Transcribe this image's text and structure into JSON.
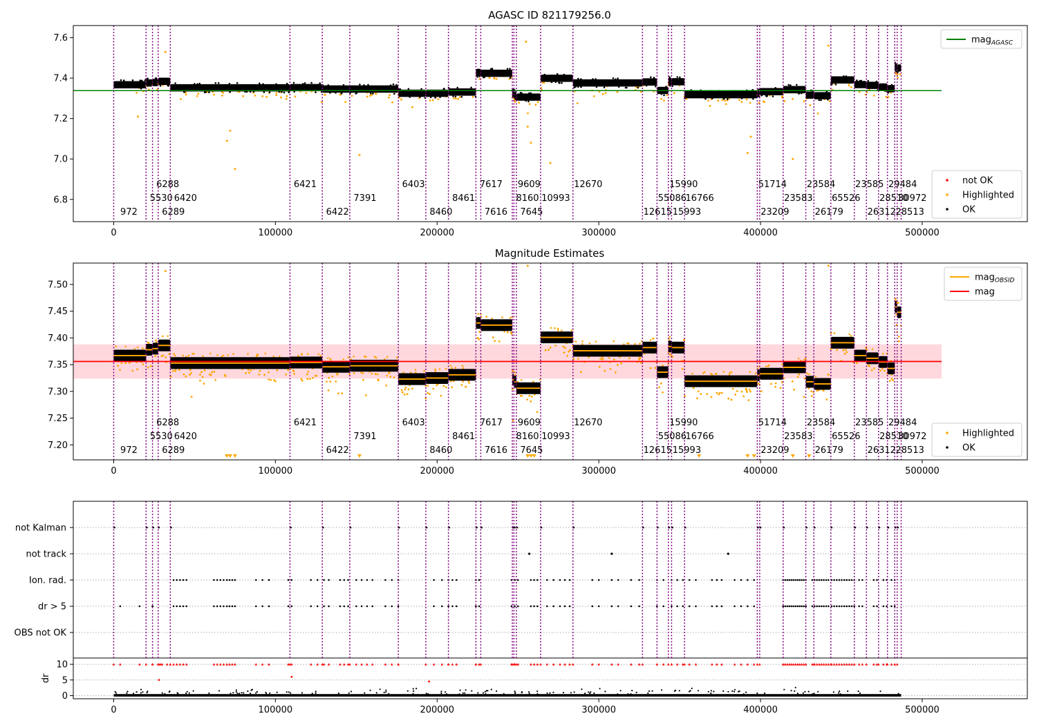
{
  "chart_data": [
    {
      "type": "scatter",
      "title": "AGASC ID 821179256.0",
      "xlim": [
        -25000,
        565000
      ],
      "ylim": [
        6.69,
        7.66
      ],
      "yticks": [
        6.8,
        7.0,
        7.2,
        7.4,
        7.6
      ],
      "ytick_labels": [
        "6.8",
        "7.0",
        "7.2",
        "7.4",
        "7.6"
      ],
      "xticks": [
        0,
        100000,
        200000,
        300000,
        400000,
        500000
      ],
      "xtick_labels": [
        "0",
        "100000",
        "200000",
        "300000",
        "400000",
        "500000"
      ],
      "mag_agasc": 7.338,
      "hline_color": "#008000",
      "legend": {
        "placement": "top-right",
        "entries": [
          {
            "label": "mag",
            "sub": "AGASC",
            "color": "#008000",
            "kind": "line"
          }
        ]
      },
      "legend2": {
        "placement": "lower-right",
        "entries": [
          {
            "label": "not OK",
            "color": "#ff0000",
            "kind": "dot"
          },
          {
            "label": "Highlighted",
            "color": "#ffa500",
            "kind": "dot"
          },
          {
            "label": "OK",
            "color": "#000000",
            "kind": "dot"
          }
        ]
      }
    },
    {
      "type": "scatter",
      "title": "Magnitude Estimates",
      "xlim": [
        -25000,
        565000
      ],
      "ylim": [
        7.172,
        7.54
      ],
      "yticks": [
        7.2,
        7.25,
        7.3,
        7.35,
        7.4,
        7.45,
        7.5
      ],
      "ytick_labels": [
        "7.20",
        "7.25",
        "7.30",
        "7.35",
        "7.40",
        "7.45",
        "7.50"
      ],
      "xticks": [
        0,
        100000,
        200000,
        300000,
        400000,
        500000
      ],
      "xtick_labels": [
        "0",
        "100000",
        "200000",
        "300000",
        "400000",
        "500000"
      ],
      "mag": 7.356,
      "mag_band": [
        7.324,
        7.388
      ],
      "legend": {
        "placement": "top-right",
        "entries": [
          {
            "label": "mag",
            "sub": "OBSID",
            "color": "#ffa500",
            "kind": "line"
          },
          {
            "label": "mag",
            "sub": "",
            "color": "#ff0000",
            "kind": "line"
          }
        ]
      },
      "legend2": {
        "placement": "lower-right",
        "entries": [
          {
            "label": "Highlighted",
            "color": "#ffa500",
            "kind": "dot"
          },
          {
            "label": "OK",
            "color": "#000000",
            "kind": "dot"
          }
        ]
      }
    },
    {
      "type": "scatter",
      "xlim": [
        -25000,
        565000
      ],
      "flag_labels": [
        "not Kalman",
        "not track",
        "Ion. rad.",
        "dr > 5",
        "OBS not OK"
      ],
      "dr_ylabel": "dr",
      "dr_ylim": [
        -1,
        12
      ],
      "dr_yticks": [
        0,
        5,
        10
      ],
      "dr_ytick_labels": [
        "0",
        "5",
        "10"
      ],
      "xticks": [
        0,
        100000,
        200000,
        300000,
        400000,
        500000
      ],
      "xtick_labels": [
        "0",
        "100000",
        "200000",
        "300000",
        "400000",
        "500000"
      ]
    }
  ],
  "segments": [
    {
      "start": 0,
      "end": 20000,
      "obsid": "972",
      "row": 0,
      "mag_obsid": 7.367,
      "mag_agasc_panel": 7.367
    },
    {
      "start": 20000,
      "end": 24000,
      "obsid": "5530",
      "row": 1,
      "mag_obsid": 7.378,
      "mag_agasc_panel": 7.376
    },
    {
      "start": 24000,
      "end": 27500,
      "obsid": "6288",
      "row": 2,
      "mag_obsid": 7.38,
      "mag_agasc_panel": 7.378
    },
    {
      "start": 27500,
      "end": 35000,
      "obsid": "6289",
      "row": 0,
      "mag_obsid": 7.386,
      "mag_agasc_panel": 7.384
    },
    {
      "start": 35000,
      "end": 109000,
      "obsid": "6420",
      "row": 1,
      "mag_obsid": 7.353,
      "mag_agasc_panel": 7.352
    },
    {
      "start": 109000,
      "end": 129000,
      "obsid": "6421",
      "row": 2,
      "mag_obsid": 7.354,
      "mag_agasc_panel": 7.353
    },
    {
      "start": 129000,
      "end": 146000,
      "obsid": "6422",
      "row": 0,
      "mag_obsid": 7.346,
      "mag_agasc_panel": 7.346
    },
    {
      "start": 146000,
      "end": 176000,
      "obsid": "7391",
      "row": 1,
      "mag_obsid": 7.348,
      "mag_agasc_panel": 7.346
    },
    {
      "start": 176000,
      "end": 193000,
      "obsid": "6403",
      "row": 2,
      "mag_obsid": 7.323,
      "mag_agasc_panel": 7.325
    },
    {
      "start": 193000,
      "end": 207000,
      "obsid": "8460",
      "row": 0,
      "mag_obsid": 7.325,
      "mag_agasc_panel": 7.325
    },
    {
      "start": 207000,
      "end": 224000,
      "obsid": "8461",
      "row": 1,
      "mag_obsid": 7.331,
      "mag_agasc_panel": 7.331
    },
    {
      "start": 224000,
      "end": 227000,
      "obsid": "7617",
      "row": 2,
      "mag_obsid": 7.428,
      "mag_agasc_panel": 7.428
    },
    {
      "start": 227000,
      "end": 246500,
      "obsid": "7616",
      "row": 0,
      "mag_obsid": 7.424,
      "mag_agasc_panel": 7.424
    },
    {
      "start": 246500,
      "end": 247500,
      "obsid": "8160",
      "row": 1,
      "mag_obsid": 7.322,
      "mag_agasc_panel": 7.322
    },
    {
      "start": 247500,
      "end": 249000,
      "obsid": "9609",
      "row": 2,
      "mag_obsid": 7.318,
      "mag_agasc_panel": 7.316
    },
    {
      "start": 249000,
      "end": 264000,
      "obsid": "7645",
      "row": 0,
      "mag_obsid": 7.306,
      "mag_agasc_panel": 7.306
    },
    {
      "start": 264000,
      "end": 284000,
      "obsid": "10993",
      "row": 1,
      "mag_obsid": 7.401,
      "mag_agasc_panel": 7.399
    },
    {
      "start": 284000,
      "end": 327000,
      "obsid": "12670",
      "row": 2,
      "mag_obsid": 7.376,
      "mag_agasc_panel": 7.376
    },
    {
      "start": 327000,
      "end": 336000,
      "obsid": "12615",
      "row": 0,
      "mag_obsid": 7.382,
      "mag_agasc_panel": 7.381
    },
    {
      "start": 336000,
      "end": 343000,
      "obsid": "55086",
      "row": 1,
      "mag_obsid": 7.336,
      "mag_agasc_panel": 7.339
    },
    {
      "start": 343000,
      "end": 345000,
      "obsid": "15990",
      "row": 2,
      "mag_obsid": 7.384,
      "mag_agasc_panel": 7.384
    },
    {
      "start": 345000,
      "end": 353000,
      "obsid": "15993",
      "row": 0,
      "mag_obsid": 7.382,
      "mag_agasc_panel": 7.382
    },
    {
      "start": 353000,
      "end": 398000,
      "obsid": "16766",
      "row": 1,
      "mag_obsid": 7.319,
      "mag_agasc_panel": 7.318
    },
    {
      "start": 398000,
      "end": 399500,
      "obsid": "51714",
      "row": 2,
      "mag_obsid": 7.33,
      "mag_agasc_panel": 7.33
    },
    {
      "start": 399500,
      "end": 414000,
      "obsid": "23209",
      "row": 0,
      "mag_obsid": 7.333,
      "mag_agasc_panel": 7.333
    },
    {
      "start": 414000,
      "end": 428000,
      "obsid": "23583",
      "row": 1,
      "mag_obsid": 7.345,
      "mag_agasc_panel": 7.343
    },
    {
      "start": 428000,
      "end": 433000,
      "obsid": "23584",
      "row": 2,
      "mag_obsid": 7.318,
      "mag_agasc_panel": 7.316
    },
    {
      "start": 433000,
      "end": 443500,
      "obsid": "26179",
      "row": 0,
      "mag_obsid": 7.314,
      "mag_agasc_panel": 7.313
    },
    {
      "start": 443500,
      "end": 458000,
      "obsid": "65526",
      "row": 1,
      "mag_obsid": 7.391,
      "mag_agasc_panel": 7.391
    },
    {
      "start": 458000,
      "end": 465500,
      "obsid": "23585",
      "row": 2,
      "mag_obsid": 7.367,
      "mag_agasc_panel": 7.368
    },
    {
      "start": 465500,
      "end": 473000,
      "obsid": "26312",
      "row": 0,
      "mag_obsid": 7.362,
      "mag_agasc_panel": 7.364
    },
    {
      "start": 473000,
      "end": 478500,
      "obsid": "28510",
      "row": 1,
      "mag_obsid": 7.355,
      "mag_agasc_panel": 7.356
    },
    {
      "start": 478500,
      "end": 483000,
      "obsid": "29484",
      "row": 2,
      "mag_obsid": 7.343,
      "mag_agasc_panel": 7.348
    },
    {
      "start": 483000,
      "end": 484500,
      "obsid": "28513",
      "row": 0,
      "mag_obsid": 7.458,
      "mag_agasc_panel": 7.454
    },
    {
      "start": 484500,
      "end": 487000,
      "obsid": "30972",
      "row": 1,
      "mag_obsid": 7.448,
      "mag_agasc_panel": 7.45
    }
  ],
  "colors": {
    "ok": "#000000",
    "not_ok": "#ff0000",
    "highlighted": "#ffa500",
    "obsid_line": "#800080",
    "mag_band": "#ffc8d0",
    "mag_line": "#ff0000",
    "mag_agasc_line": "#008000"
  }
}
